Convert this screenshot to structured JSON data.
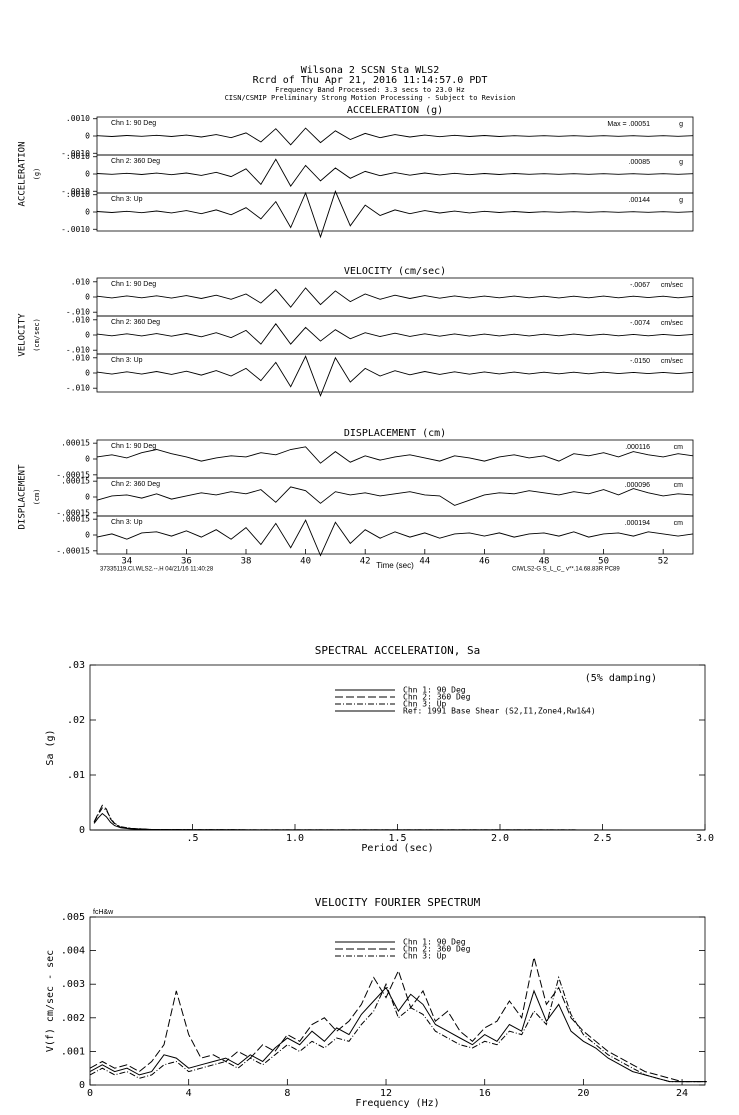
{
  "header": {
    "station": "Wilsona 2    SCSN Sta WLS2",
    "record": "Rcrd of Thu Apr 21, 2016 11:14:57.0 PDT",
    "band": "Frequency Band Processed: 3.3 secs to 23.0 Hz",
    "notice": "CISN/CSMIP Preliminary Strong Motion Processing - Subject to Revision"
  },
  "chart_data": [
    {
      "type": "traces",
      "title": "ACCELERATION (g)",
      "y_label": "ACCELERATION",
      "y_unit": "(g)",
      "xlim": [
        33,
        53
      ],
      "ylim": [
        -0.0011,
        0.0011
      ],
      "yticks": [
        {
          "value": 0.001,
          "label": ".0010"
        },
        0,
        {
          "value": -0.001,
          "label": "-.0010"
        }
      ],
      "x": [
        33,
        33.5,
        34,
        34.5,
        35,
        35.5,
        36,
        36.5,
        37,
        37.5,
        38,
        38.5,
        39,
        39.5,
        40,
        40.5,
        41,
        41.5,
        42,
        42.5,
        43,
        43.5,
        44,
        44.5,
        45,
        45.5,
        46,
        46.5,
        47,
        47.5,
        48,
        48.5,
        49,
        49.5,
        50,
        50.5,
        51,
        51.5,
        52,
        52.5,
        53
      ],
      "series": [
        {
          "name": "Chn 1: 90 Deg",
          "peak_label": "Max =  .00051",
          "unit": "g",
          "values": [
            2e-05,
            -3e-05,
            3e-05,
            -2e-05,
            4e-05,
            -3e-05,
            5e-05,
            -6e-05,
            8e-05,
            -0.0001,
            0.00018,
            -0.00035,
            0.00042,
            -0.00051,
            0.00046,
            -0.00038,
            0.0003,
            -0.0002,
            0.00015,
            -0.0001,
            8e-05,
            -6e-05,
            5e-05,
            -4e-05,
            4e-05,
            -3e-05,
            3e-05,
            -3e-05,
            2e-05,
            -2e-05,
            2e-05,
            -2e-05,
            2e-05,
            -2e-05,
            2e-05,
            -2e-05,
            2e-05,
            -2e-05,
            2e-05,
            -2e-05,
            2e-05
          ]
        },
        {
          "name": "Chn 2: 360 Deg",
          "peak_label": ".00085",
          "unit": "g",
          "values": [
            3e-05,
            -2e-05,
            4e-05,
            -3e-05,
            5e-05,
            -4e-05,
            6e-05,
            -8e-05,
            0.0001,
            -0.00015,
            0.0003,
            -0.0006,
            0.00085,
            -0.0007,
            0.0005,
            -0.0004,
            0.00035,
            -0.00025,
            0.00015,
            -0.0001,
            8e-05,
            -7e-05,
            6e-05,
            -5e-05,
            4e-05,
            -4e-05,
            3e-05,
            -3e-05,
            3e-05,
            -2e-05,
            2e-05,
            -2e-05,
            2e-05,
            -2e-05,
            2e-05,
            -2e-05,
            2e-05,
            -2e-05,
            2e-05,
            -2e-05,
            2e-05
          ]
        },
        {
          "name": "Chn 3: Up",
          "peak_label": ".00144",
          "unit": "g",
          "values": [
            3e-05,
            -3e-05,
            4e-05,
            -4e-05,
            6e-05,
            -5e-05,
            8e-05,
            -0.0001,
            0.00012,
            -0.00016,
            0.00025,
            -0.0004,
            0.0006,
            -0.0009,
            0.0011,
            -0.00144,
            0.0012,
            -0.0008,
            0.0004,
            -0.0002,
            0.00012,
            -0.0001,
            8e-05,
            -6e-05,
            5e-05,
            -5e-05,
            4e-05,
            -3e-05,
            3e-05,
            -3e-05,
            2e-05,
            -2e-05,
            2e-05,
            -2e-05,
            2e-05,
            -2e-05,
            2e-05,
            -2e-05,
            2e-05,
            -2e-05,
            2e-05
          ]
        }
      ]
    },
    {
      "type": "traces",
      "title": "VELOCITY (cm/sec)",
      "y_label": "VELOCITY",
      "y_unit": "(cm/sec)",
      "xlim": [
        33,
        53
      ],
      "ylim": [
        -0.0125,
        0.0125
      ],
      "yticks": [
        {
          "value": 0.01,
          "label": ".010"
        },
        0,
        {
          "value": -0.01,
          "label": "-.010"
        }
      ],
      "x": [
        33,
        33.5,
        34,
        34.5,
        35,
        35.5,
        36,
        36.5,
        37,
        37.5,
        38,
        38.5,
        39,
        39.5,
        40,
        40.5,
        41,
        41.5,
        42,
        42.5,
        43,
        43.5,
        44,
        44.5,
        45,
        45.5,
        46,
        46.5,
        47,
        47.5,
        48,
        48.5,
        49,
        49.5,
        50,
        50.5,
        51,
        51.5,
        52,
        52.5,
        53
      ],
      "series": [
        {
          "name": "Chn 1: 90 Deg",
          "peak_label": "-.0067",
          "unit": "cm/sec",
          "values": [
            0.0005,
            -0.0006,
            0.0007,
            -0.0005,
            0.0008,
            -0.0007,
            0.0009,
            -0.001,
            0.0012,
            -0.0015,
            0.002,
            -0.004,
            0.005,
            -0.0067,
            0.006,
            -0.005,
            0.004,
            -0.003,
            0.002,
            -0.0015,
            0.0012,
            -0.001,
            0.0009,
            -0.0008,
            0.0007,
            -0.0006,
            0.0006,
            -0.0005,
            0.0006,
            -0.0005,
            0.0005,
            -0.0006,
            0.0005,
            -0.0005,
            0.0006,
            -0.0005,
            0.0005,
            -0.0004,
            0.0005,
            -0.0005,
            0.0004
          ]
        },
        {
          "name": "Chn 2: 360 Deg",
          "peak_label": "-.0074",
          "unit": "cm/sec",
          "values": [
            0.0006,
            -0.0005,
            0.0008,
            -0.0006,
            0.0009,
            -0.0008,
            0.001,
            -0.0012,
            0.0015,
            -0.0018,
            0.003,
            -0.006,
            0.0074,
            -0.006,
            0.005,
            -0.004,
            0.0035,
            -0.0025,
            0.0015,
            -0.001,
            0.0012,
            -0.0009,
            0.0008,
            -0.0008,
            0.0007,
            -0.0007,
            0.0006,
            -0.0006,
            0.0005,
            -0.0006,
            0.0005,
            -0.0005,
            0.0006,
            -0.0004,
            0.0005,
            -0.0005,
            0.0004,
            -0.0005,
            0.0004,
            -0.0004,
            0.0004
          ]
        },
        {
          "name": "Chn 3: Up",
          "peak_label": "-.0150",
          "unit": "cm/sec",
          "values": [
            0.0006,
            -0.0007,
            0.0008,
            -0.0007,
            0.001,
            -0.0009,
            0.0012,
            -0.0014,
            0.0016,
            -0.002,
            0.003,
            -0.005,
            0.007,
            -0.009,
            0.011,
            -0.015,
            0.01,
            -0.006,
            0.003,
            -0.002,
            0.0015,
            -0.0012,
            0.001,
            -0.0009,
            0.0008,
            -0.0008,
            0.0007,
            -0.0006,
            0.0006,
            -0.0006,
            0.0005,
            -0.0005,
            0.0005,
            -0.0005,
            0.0005,
            -0.0004,
            0.0004,
            -0.0004,
            0.0004,
            -0.0004,
            0.0004
          ]
        }
      ]
    },
    {
      "type": "traces",
      "title": "DISPLACEMENT (cm)",
      "y_label": "DISPLACEMENT",
      "y_unit": "(cm)",
      "xlim": [
        33,
        53
      ],
      "ylim": [
        -0.00018,
        0.00018
      ],
      "yticks": [
        {
          "value": 0.00015,
          "label": ".00015"
        },
        0,
        {
          "value": -0.00015,
          "label": "-.00015"
        }
      ],
      "xticks": [
        34,
        36,
        38,
        40,
        42,
        44,
        46,
        48,
        50,
        52
      ],
      "x_label": "Time (sec)",
      "footer_left": "37335119.CI.WLS2.--.H 04/21/16 11:40:28",
      "footer_right": "CIWLS2-G  S_L_C_  v**.14.68.83R PC89",
      "x": [
        33,
        33.5,
        34,
        34.5,
        35,
        35.5,
        36,
        36.5,
        37,
        37.5,
        38,
        38.5,
        39,
        39.5,
        40,
        40.5,
        41,
        41.5,
        42,
        42.5,
        43,
        43.5,
        44,
        44.5,
        45,
        45.5,
        46,
        46.5,
        47,
        47.5,
        48,
        48.5,
        49,
        49.5,
        50,
        50.5,
        51,
        51.5,
        52,
        52.5,
        53
      ],
      "series": [
        {
          "name": "Chn 1: 90 Deg",
          "peak_label": ".000116",
          "unit": "cm",
          "values": [
            2e-05,
            4e-05,
            1e-05,
            6e-05,
            9e-05,
            5e-05,
            2e-05,
            -2e-05,
            1e-05,
            3e-05,
            2e-05,
            6e-05,
            4e-05,
            9e-05,
            0.000116,
            -4e-05,
            7e-05,
            -3e-05,
            3e-05,
            -1e-05,
            2e-05,
            4e-05,
            1e-05,
            -2e-05,
            3e-05,
            1e-05,
            -2e-05,
            2e-05,
            4e-05,
            1e-05,
            3e-05,
            -2e-05,
            5e-05,
            3e-05,
            6e-05,
            2e-05,
            7e-05,
            4e-05,
            2e-05,
            5e-05,
            3e-05
          ]
        },
        {
          "name": "Chn 2: 360 Deg",
          "peak_label": ".000096",
          "unit": "cm",
          "values": [
            -3e-05,
            1e-05,
            2e-05,
            -1e-05,
            3e-05,
            -2e-05,
            1e-05,
            4e-05,
            2e-05,
            5e-05,
            3e-05,
            7e-05,
            -5e-05,
            9.6e-05,
            6e-05,
            -6e-05,
            5e-05,
            2e-05,
            4e-05,
            1e-05,
            3e-05,
            5e-05,
            2e-05,
            1e-05,
            -8e-05,
            -3e-05,
            2e-05,
            4e-05,
            3e-05,
            6e-05,
            4e-05,
            2e-05,
            5e-05,
            3e-05,
            7e-05,
            2e-05,
            8e-05,
            4e-05,
            1e-05,
            3e-05,
            2e-05
          ]
        },
        {
          "name": "Chn 3: Up",
          "peak_label": ".000194",
          "unit": "cm",
          "values": [
            -2e-05,
            1e-05,
            -4e-05,
            2e-05,
            3e-05,
            -1e-05,
            4e-05,
            -2e-05,
            5e-05,
            -4e-05,
            7e-05,
            -9e-05,
            0.00011,
            -0.00012,
            0.00014,
            -0.000194,
            0.00012,
            -8e-05,
            5e-05,
            -3e-05,
            3e-05,
            -2e-05,
            2e-05,
            -3e-05,
            1e-05,
            2e-05,
            -1e-05,
            2e-05,
            -2e-05,
            1e-05,
            2e-05,
            -1e-05,
            3e-05,
            -2e-05,
            1e-05,
            2e-05,
            -1e-05,
            3e-05,
            1e-05,
            -1e-05,
            1e-05
          ]
        }
      ]
    },
    {
      "type": "line",
      "title": "SPECTRAL ACCELERATION, Sa",
      "x_label": "Period (sec)",
      "y_label": "Sa (g)",
      "annotation": "(5% damping)",
      "xlim": [
        0,
        3
      ],
      "ylim": [
        0,
        0.03
      ],
      "xticks": [
        {
          "value": 0.5,
          "label": ".5"
        },
        {
          "value": 1,
          "label": "1.0"
        },
        {
          "value": 1.5,
          "label": "1.5"
        },
        {
          "value": 2,
          "label": "2.0"
        },
        {
          "value": 2.5,
          "label": "2.5"
        },
        {
          "value": 3,
          "label": "3.0"
        }
      ],
      "yticks": [
        0,
        {
          "value": 0.01,
          "label": ".01"
        },
        {
          "value": 0.02,
          "label": ".02"
        },
        {
          "value": 0.03,
          "label": ".03"
        }
      ],
      "x": [
        0.02,
        0.04,
        0.06,
        0.08,
        0.1,
        0.12,
        0.15,
        0.2,
        0.3,
        0.5,
        0.7,
        1.0,
        1.5,
        2.0,
        3.0
      ],
      "series": [
        {
          "name": "Chn 1: 90 Deg",
          "dash": "solid",
          "values": [
            0.0012,
            0.0022,
            0.003,
            0.0024,
            0.0014,
            0.0008,
            0.0004,
            0.0002,
            0.0001,
            5e-05,
            3e-05,
            2e-05,
            1e-05,
            1e-05,
            0
          ]
        },
        {
          "name": "Chn 2: 360 Deg",
          "dash": "dashed",
          "values": [
            0.0015,
            0.003,
            0.0045,
            0.0038,
            0.002,
            0.0011,
            0.0005,
            0.0003,
            0.0001,
            6e-05,
            3e-05,
            2e-05,
            1e-05,
            1e-05,
            0
          ]
        },
        {
          "name": "Chn 3: Up",
          "dash": "dashdot",
          "values": [
            0.0014,
            0.0028,
            0.004,
            0.0036,
            0.0022,
            0.0012,
            0.0006,
            0.0003,
            0.0001,
            5e-05,
            3e-05,
            2e-05,
            1e-05,
            1e-05,
            0
          ]
        },
        {
          "name": "Ref: 1991 Base Shear (S2,I1,Zone4,Rw1&4)",
          "dash": "solid",
          "values": [
            0,
            0,
            0,
            0,
            0,
            0,
            0,
            0,
            0,
            0,
            0,
            0,
            0,
            0,
            0
          ]
        }
      ]
    },
    {
      "type": "line",
      "title": "VELOCITY FOURIER SPECTRUM",
      "x_label": "Frequency (Hz)",
      "y_label": "V(f)   cm/sec - sec",
      "annotation": "fcH&w",
      "xlim": [
        0,
        24.93
      ],
      "ylim": [
        0,
        0.005
      ],
      "xticks": [
        0,
        4,
        8,
        12,
        16,
        20,
        24
      ],
      "yticks": [
        0,
        {
          "value": 0.001,
          "label": ".001"
        },
        {
          "value": 0.002,
          "label": ".002"
        },
        {
          "value": 0.003,
          "label": ".003"
        },
        {
          "value": 0.004,
          "label": ".004"
        },
        {
          "value": 0.005,
          "label": ".005"
        }
      ],
      "x": [
        0,
        0.5,
        1,
        1.5,
        2,
        2.5,
        3,
        3.5,
        4,
        4.5,
        5,
        5.5,
        6,
        6.5,
        7,
        7.5,
        8,
        8.5,
        9,
        9.5,
        10,
        10.5,
        11,
        11.5,
        12,
        12.5,
        13,
        13.5,
        14,
        14.5,
        15,
        15.5,
        16,
        16.5,
        17,
        17.5,
        18,
        18.5,
        19,
        19.5,
        20,
        20.5,
        21,
        21.5,
        22,
        22.5,
        23,
        23.5,
        24,
        24.5,
        25
      ],
      "series": [
        {
          "name": "Chn 1: 90 Deg",
          "dash": "solid",
          "values": [
            0.0004,
            0.0006,
            0.0004,
            0.0005,
            0.0003,
            0.0004,
            0.0009,
            0.0008,
            0.0005,
            0.0006,
            0.0007,
            0.0008,
            0.0006,
            0.0009,
            0.0007,
            0.0011,
            0.0014,
            0.0012,
            0.0016,
            0.0013,
            0.0017,
            0.0015,
            0.0021,
            0.0025,
            0.0029,
            0.0022,
            0.0027,
            0.0024,
            0.0018,
            0.0016,
            0.0014,
            0.0012,
            0.0015,
            0.0013,
            0.0018,
            0.0016,
            0.0028,
            0.0019,
            0.0024,
            0.0016,
            0.0013,
            0.0011,
            0.0008,
            0.0006,
            0.0004,
            0.0003,
            0.0002,
            0.0001,
            0.0001,
            0.0001,
            0.0001
          ]
        },
        {
          "name": "Chn 2: 360 Deg",
          "dash": "dashed",
          "values": [
            0.0005,
            0.0007,
            0.0005,
            0.0006,
            0.0004,
            0.0007,
            0.0012,
            0.0028,
            0.0015,
            0.0008,
            0.0009,
            0.0007,
            0.001,
            0.0008,
            0.0012,
            0.001,
            0.0015,
            0.0013,
            0.0018,
            0.002,
            0.0016,
            0.0019,
            0.0024,
            0.0032,
            0.0026,
            0.0034,
            0.0023,
            0.0028,
            0.0019,
            0.0022,
            0.0016,
            0.0013,
            0.0017,
            0.0019,
            0.0025,
            0.002,
            0.0038,
            0.0024,
            0.0029,
            0.002,
            0.0016,
            0.0013,
            0.001,
            0.0008,
            0.0006,
            0.0004,
            0.0003,
            0.0002,
            0.0001,
            0.0001,
            0.0001
          ]
        },
        {
          "name": "Chn 3: Up",
          "dash": "dashdot",
          "values": [
            0.0003,
            0.0005,
            0.0003,
            0.0004,
            0.0002,
            0.0003,
            0.0006,
            0.0007,
            0.0004,
            0.0005,
            0.0006,
            0.0007,
            0.0005,
            0.0008,
            0.0006,
            0.0009,
            0.0012,
            0.001,
            0.0013,
            0.0011,
            0.0014,
            0.0013,
            0.0018,
            0.0022,
            0.003,
            0.002,
            0.0023,
            0.0021,
            0.0016,
            0.0014,
            0.0012,
            0.0011,
            0.0013,
            0.0012,
            0.0016,
            0.0015,
            0.0022,
            0.0018,
            0.0032,
            0.0021,
            0.0015,
            0.0012,
            0.0009,
            0.0007,
            0.0005,
            0.0003,
            0.0002,
            0.0001,
            0.0001,
            0.0001,
            0.0001
          ]
        }
      ]
    }
  ]
}
